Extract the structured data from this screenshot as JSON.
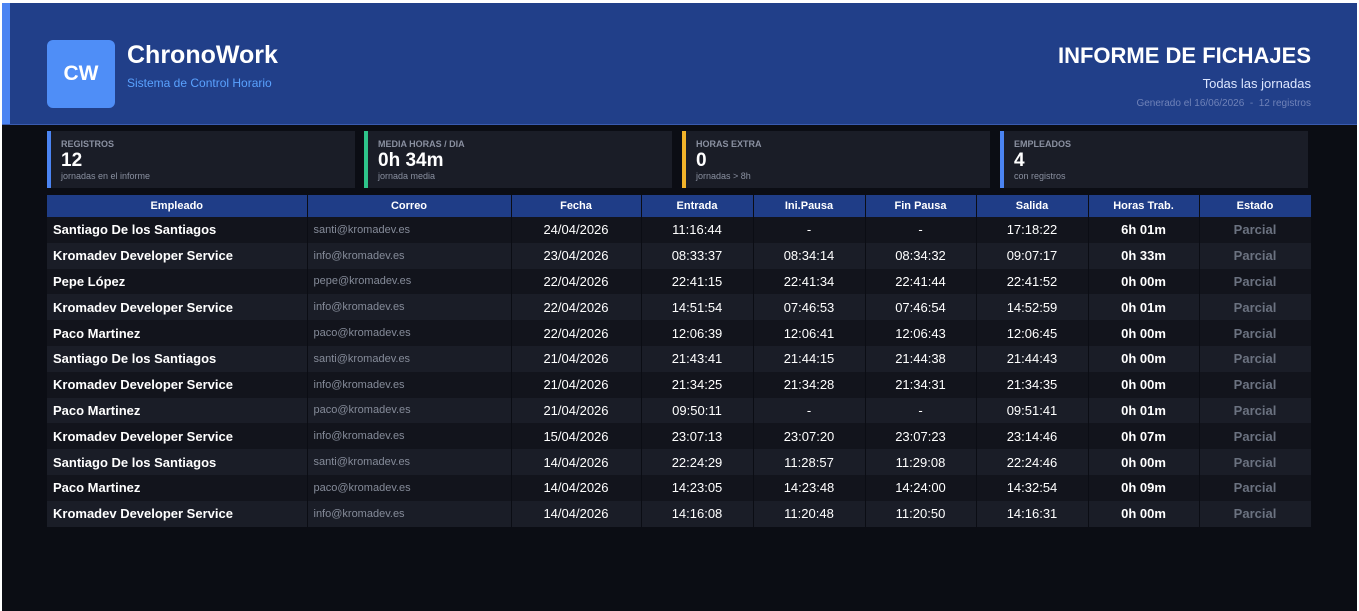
{
  "header": {
    "logo": "CW",
    "brand": "ChronoWork",
    "tagline": "Sistema de Control Horario",
    "title": "INFORME DE FICHAJES",
    "subtitle": "Todas las jornadas",
    "meta": "Generado el 16/06/2026  -  12 registros"
  },
  "stats": [
    {
      "label": "Registros",
      "value": "12",
      "sub": "jornadas en el informe",
      "color": "#4b84f2"
    },
    {
      "label": "Media Horas / Dia",
      "value": "0h 34m",
      "sub": "jornada media",
      "color": "#2ec48a"
    },
    {
      "label": "Horas Extra",
      "value": "0",
      "sub": "jornadas > 8h",
      "color": "#f2b32a"
    },
    {
      "label": "Empleados",
      "value": "4",
      "sub": "con registros",
      "color": "#4b84f2"
    }
  ],
  "table": {
    "headers": [
      "Empleado",
      "Correo",
      "Fecha",
      "Entrada",
      "Ini.Pausa",
      "Fin Pausa",
      "Salida",
      "Horas Trab.",
      "Estado"
    ],
    "rows": [
      [
        "Santiago De los Santiagos",
        "santi@kromadev.es",
        "24/04/2026",
        "11:16:44",
        "-",
        "-",
        "17:18:22",
        "6h 01m",
        "Parcial"
      ],
      [
        "Kromadev Developer Service",
        "info@kromadev.es",
        "23/04/2026",
        "08:33:37",
        "08:34:14",
        "08:34:32",
        "09:07:17",
        "0h 33m",
        "Parcial"
      ],
      [
        "Pepe López",
        "pepe@kromadev.es",
        "22/04/2026",
        "22:41:15",
        "22:41:34",
        "22:41:44",
        "22:41:52",
        "0h 00m",
        "Parcial"
      ],
      [
        "Kromadev Developer Service",
        "info@kromadev.es",
        "22/04/2026",
        "14:51:54",
        "07:46:53",
        "07:46:54",
        "14:52:59",
        "0h 01m",
        "Parcial"
      ],
      [
        "Paco Martinez",
        "paco@kromadev.es",
        "22/04/2026",
        "12:06:39",
        "12:06:41",
        "12:06:43",
        "12:06:45",
        "0h 00m",
        "Parcial"
      ],
      [
        "Santiago De los Santiagos",
        "santi@kromadev.es",
        "21/04/2026",
        "21:43:41",
        "21:44:15",
        "21:44:38",
        "21:44:43",
        "0h 00m",
        "Parcial"
      ],
      [
        "Kromadev Developer Service",
        "info@kromadev.es",
        "21/04/2026",
        "21:34:25",
        "21:34:28",
        "21:34:31",
        "21:34:35",
        "0h 00m",
        "Parcial"
      ],
      [
        "Paco Martinez",
        "paco@kromadev.es",
        "21/04/2026",
        "09:50:11",
        "-",
        "-",
        "09:51:41",
        "0h 01m",
        "Parcial"
      ],
      [
        "Kromadev Developer Service",
        "info@kromadev.es",
        "15/04/2026",
        "23:07:13",
        "23:07:20",
        "23:07:23",
        "23:14:46",
        "0h 07m",
        "Parcial"
      ],
      [
        "Santiago De los Santiagos",
        "santi@kromadev.es",
        "14/04/2026",
        "22:24:29",
        "11:28:57",
        "11:29:08",
        "22:24:46",
        "0h 00m",
        "Parcial"
      ],
      [
        "Paco Martinez",
        "paco@kromadev.es",
        "14/04/2026",
        "14:23:05",
        "14:23:48",
        "14:24:00",
        "14:32:54",
        "0h 09m",
        "Parcial"
      ],
      [
        "Kromadev Developer Service",
        "info@kromadev.es",
        "14/04/2026",
        "14:16:08",
        "11:20:48",
        "11:20:50",
        "14:16:31",
        "0h 00m",
        "Parcial"
      ]
    ]
  }
}
